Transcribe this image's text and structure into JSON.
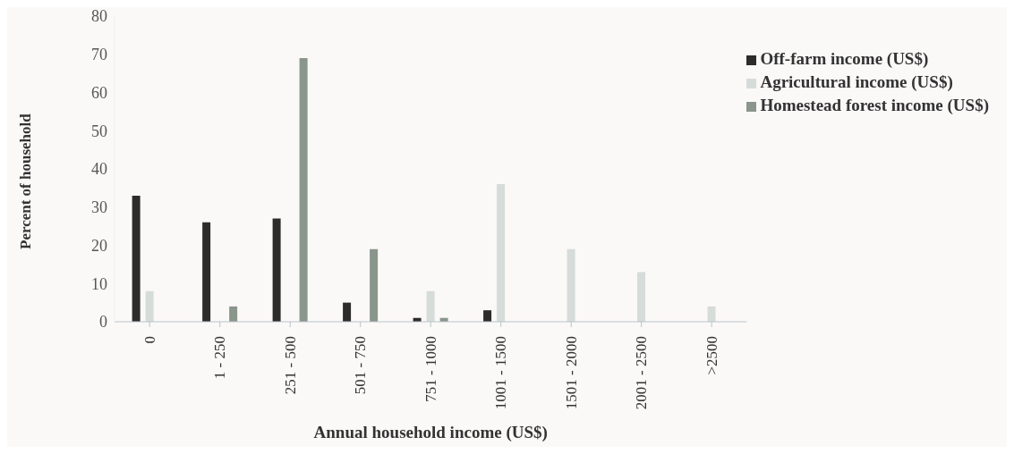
{
  "chart_data": {
    "type": "bar",
    "xlabel": "Annual household income (US$)",
    "ylabel": "Percent of household",
    "categories": [
      "0",
      "1 - 250",
      "251 - 500",
      "501 - 750",
      "751 - 1000",
      "1001 - 1500",
      "1501 - 2000",
      "2001 - 2500",
      ">2500"
    ],
    "series": [
      {
        "name": "Off-farm income (US$)",
        "color": "#2e2b2b",
        "values": [
          33,
          26,
          27,
          5,
          1,
          3,
          0,
          0,
          0
        ]
      },
      {
        "name": "Agricultural income (US$)",
        "color": "#d5dcd9",
        "values": [
          8,
          0,
          0,
          0,
          8,
          36,
          19,
          13,
          4
        ]
      },
      {
        "name": "Homestead forest income (US$)",
        "color": "#8a958c",
        "values": [
          0,
          4,
          69,
          19,
          1,
          0,
          0,
          0,
          0
        ]
      }
    ],
    "ylim": [
      0,
      80
    ],
    "yticks": [
      0,
      10,
      20,
      30,
      40,
      50,
      60,
      70,
      80
    ],
    "grid": false,
    "legend": "top right"
  }
}
